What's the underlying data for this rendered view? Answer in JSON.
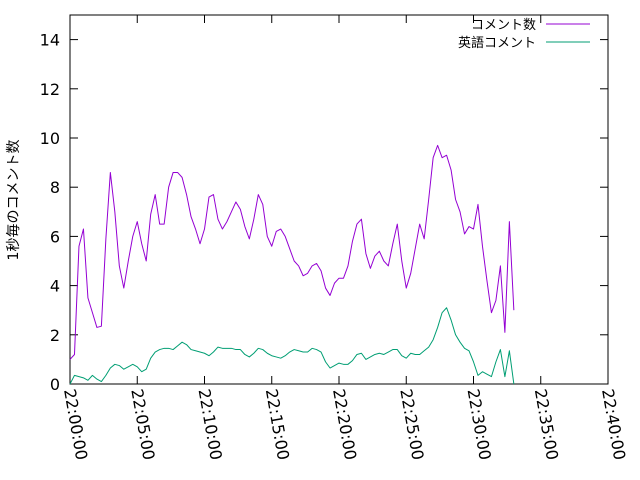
{
  "chart_data": {
    "type": "line",
    "title": "",
    "xlabel": "",
    "ylabel": "1秒毎のコメント数",
    "xlim": [
      "22:00:00",
      "22:40:00"
    ],
    "ylim": [
      0,
      15
    ],
    "x_ticks": [
      "22:00:00",
      "22:05:00",
      "22:10:00",
      "22:15:00",
      "22:20:00",
      "22:25:00",
      "22:30:00",
      "22:35:00",
      "22:40:00"
    ],
    "y_ticks": [
      "0",
      "2",
      "4",
      "6",
      "8",
      "10",
      "12",
      "14"
    ],
    "grid": false,
    "legend_position": "top-right",
    "series": [
      {
        "name": "コメント数",
        "color": "#9400d3",
        "points": [
          [
            "22:00:00",
            1.0
          ],
          [
            "22:00:20",
            1.2
          ],
          [
            "22:00:40",
            5.6
          ],
          [
            "22:01:00",
            6.3
          ],
          [
            "22:01:20",
            3.5
          ],
          [
            "22:01:40",
            2.9
          ],
          [
            "22:02:00",
            2.3
          ],
          [
            "22:02:20",
            2.35
          ],
          [
            "22:02:40",
            5.9
          ],
          [
            "22:03:00",
            8.6
          ],
          [
            "22:03:20",
            7.0
          ],
          [
            "22:03:40",
            4.8
          ],
          [
            "22:04:00",
            3.9
          ],
          [
            "22:04:20",
            5.0
          ],
          [
            "22:04:40",
            6.0
          ],
          [
            "22:05:00",
            6.6
          ],
          [
            "22:05:20",
            5.7
          ],
          [
            "22:05:40",
            5.0
          ],
          [
            "22:06:00",
            6.9
          ],
          [
            "22:06:20",
            7.7
          ],
          [
            "22:06:40",
            6.5
          ],
          [
            "22:07:00",
            6.5
          ],
          [
            "22:07:20",
            8.0
          ],
          [
            "22:07:40",
            8.6
          ],
          [
            "22:08:00",
            8.6
          ],
          [
            "22:08:20",
            8.4
          ],
          [
            "22:08:40",
            7.7
          ],
          [
            "22:09:00",
            6.8
          ],
          [
            "22:09:20",
            6.3
          ],
          [
            "22:09:40",
            5.7
          ],
          [
            "22:10:00",
            6.3
          ],
          [
            "22:10:20",
            7.6
          ],
          [
            "22:10:40",
            7.7
          ],
          [
            "22:11:00",
            6.7
          ],
          [
            "22:11:20",
            6.3
          ],
          [
            "22:11:40",
            6.6
          ],
          [
            "22:12:00",
            7.0
          ],
          [
            "22:12:20",
            7.4
          ],
          [
            "22:12:40",
            7.1
          ],
          [
            "22:13:00",
            6.4
          ],
          [
            "22:13:20",
            5.9
          ],
          [
            "22:13:40",
            6.7
          ],
          [
            "22:14:00",
            7.7
          ],
          [
            "22:14:20",
            7.3
          ],
          [
            "22:14:40",
            6.0
          ],
          [
            "22:15:00",
            5.6
          ],
          [
            "22:15:20",
            6.2
          ],
          [
            "22:15:40",
            6.3
          ],
          [
            "22:16:00",
            6.0
          ],
          [
            "22:16:20",
            5.5
          ],
          [
            "22:16:40",
            5.0
          ],
          [
            "22:17:00",
            4.8
          ],
          [
            "22:17:20",
            4.4
          ],
          [
            "22:17:40",
            4.5
          ],
          [
            "22:18:00",
            4.8
          ],
          [
            "22:18:20",
            4.9
          ],
          [
            "22:18:40",
            4.6
          ],
          [
            "22:19:00",
            3.9
          ],
          [
            "22:19:20",
            3.6
          ],
          [
            "22:19:40",
            4.1
          ],
          [
            "22:20:00",
            4.3
          ],
          [
            "22:20:20",
            4.3
          ],
          [
            "22:20:40",
            4.8
          ],
          [
            "22:21:00",
            5.8
          ],
          [
            "22:21:20",
            6.5
          ],
          [
            "22:21:40",
            6.7
          ],
          [
            "22:22:00",
            5.3
          ],
          [
            "22:22:20",
            4.7
          ],
          [
            "22:22:40",
            5.2
          ],
          [
            "22:23:00",
            5.4
          ],
          [
            "22:23:20",
            5.0
          ],
          [
            "22:23:40",
            4.8
          ],
          [
            "22:24:00",
            5.7
          ],
          [
            "22:24:20",
            6.5
          ],
          [
            "22:24:40",
            5.0
          ],
          [
            "22:25:00",
            3.9
          ],
          [
            "22:25:20",
            4.5
          ],
          [
            "22:25:40",
            5.5
          ],
          [
            "22:26:00",
            6.5
          ],
          [
            "22:26:20",
            5.9
          ],
          [
            "22:26:40",
            7.5
          ],
          [
            "22:27:00",
            9.2
          ],
          [
            "22:27:20",
            9.7
          ],
          [
            "22:27:40",
            9.2
          ],
          [
            "22:28:00",
            9.3
          ],
          [
            "22:28:20",
            8.7
          ],
          [
            "22:28:40",
            7.5
          ],
          [
            "22:29:00",
            7.0
          ],
          [
            "22:29:20",
            6.1
          ],
          [
            "22:29:40",
            6.4
          ],
          [
            "22:30:00",
            6.3
          ],
          [
            "22:30:20",
            7.3
          ],
          [
            "22:30:40",
            5.6
          ],
          [
            "22:31:00",
            4.2
          ],
          [
            "22:31:20",
            2.9
          ],
          [
            "22:31:40",
            3.4
          ],
          [
            "22:32:00",
            4.8
          ],
          [
            "22:32:20",
            2.1
          ],
          [
            "22:32:40",
            6.6
          ],
          [
            "22:33:00",
            3.0
          ]
        ]
      },
      {
        "name": "英語コメント",
        "color": "#009e73",
        "points": [
          [
            "22:00:00",
            0.0
          ],
          [
            "22:00:20",
            0.35
          ],
          [
            "22:00:40",
            0.3
          ],
          [
            "22:01:00",
            0.25
          ],
          [
            "22:01:20",
            0.15
          ],
          [
            "22:01:40",
            0.35
          ],
          [
            "22:02:00",
            0.2
          ],
          [
            "22:02:20",
            0.1
          ],
          [
            "22:02:40",
            0.35
          ],
          [
            "22:03:00",
            0.65
          ],
          [
            "22:03:20",
            0.8
          ],
          [
            "22:03:40",
            0.75
          ],
          [
            "22:04:00",
            0.6
          ],
          [
            "22:04:20",
            0.7
          ],
          [
            "22:04:40",
            0.8
          ],
          [
            "22:05:00",
            0.7
          ],
          [
            "22:05:20",
            0.5
          ],
          [
            "22:05:40",
            0.6
          ],
          [
            "22:06:00",
            1.05
          ],
          [
            "22:06:20",
            1.3
          ],
          [
            "22:06:40",
            1.4
          ],
          [
            "22:07:00",
            1.45
          ],
          [
            "22:07:20",
            1.45
          ],
          [
            "22:07:40",
            1.4
          ],
          [
            "22:08:00",
            1.55
          ],
          [
            "22:08:20",
            1.7
          ],
          [
            "22:08:40",
            1.6
          ],
          [
            "22:09:00",
            1.4
          ],
          [
            "22:09:20",
            1.35
          ],
          [
            "22:09:40",
            1.3
          ],
          [
            "22:10:00",
            1.25
          ],
          [
            "22:10:20",
            1.15
          ],
          [
            "22:10:40",
            1.3
          ],
          [
            "22:11:00",
            1.5
          ],
          [
            "22:11:20",
            1.45
          ],
          [
            "22:11:40",
            1.45
          ],
          [
            "22:12:00",
            1.45
          ],
          [
            "22:12:20",
            1.4
          ],
          [
            "22:12:40",
            1.4
          ],
          [
            "22:13:00",
            1.2
          ],
          [
            "22:13:20",
            1.1
          ],
          [
            "22:13:40",
            1.25
          ],
          [
            "22:14:00",
            1.45
          ],
          [
            "22:14:20",
            1.4
          ],
          [
            "22:14:40",
            1.25
          ],
          [
            "22:15:00",
            1.15
          ],
          [
            "22:15:20",
            1.1
          ],
          [
            "22:15:40",
            1.05
          ],
          [
            "22:16:00",
            1.15
          ],
          [
            "22:16:20",
            1.3
          ],
          [
            "22:16:40",
            1.4
          ],
          [
            "22:17:00",
            1.35
          ],
          [
            "22:17:20",
            1.3
          ],
          [
            "22:17:40",
            1.3
          ],
          [
            "22:18:00",
            1.45
          ],
          [
            "22:18:20",
            1.4
          ],
          [
            "22:18:40",
            1.3
          ],
          [
            "22:19:00",
            0.9
          ],
          [
            "22:19:20",
            0.65
          ],
          [
            "22:19:40",
            0.75
          ],
          [
            "22:20:00",
            0.85
          ],
          [
            "22:20:20",
            0.8
          ],
          [
            "22:20:40",
            0.8
          ],
          [
            "22:21:00",
            0.95
          ],
          [
            "22:21:20",
            1.2
          ],
          [
            "22:21:40",
            1.25
          ],
          [
            "22:22:00",
            1.0
          ],
          [
            "22:22:20",
            1.1
          ],
          [
            "22:22:40",
            1.2
          ],
          [
            "22:23:00",
            1.25
          ],
          [
            "22:23:20",
            1.2
          ],
          [
            "22:23:40",
            1.3
          ],
          [
            "22:24:00",
            1.4
          ],
          [
            "22:24:20",
            1.4
          ],
          [
            "22:24:40",
            1.15
          ],
          [
            "22:25:00",
            1.05
          ],
          [
            "22:25:20",
            1.25
          ],
          [
            "22:25:40",
            1.2
          ],
          [
            "22:26:00",
            1.2
          ],
          [
            "22:26:20",
            1.35
          ],
          [
            "22:26:40",
            1.5
          ],
          [
            "22:27:00",
            1.8
          ],
          [
            "22:27:20",
            2.3
          ],
          [
            "22:27:40",
            2.9
          ],
          [
            "22:28:00",
            3.1
          ],
          [
            "22:28:20",
            2.6
          ],
          [
            "22:28:40",
            2.0
          ],
          [
            "22:29:00",
            1.7
          ],
          [
            "22:29:20",
            1.45
          ],
          [
            "22:29:40",
            1.35
          ],
          [
            "22:30:00",
            0.9
          ],
          [
            "22:30:20",
            0.35
          ],
          [
            "22:30:40",
            0.5
          ],
          [
            "22:31:00",
            0.4
          ],
          [
            "22:31:20",
            0.3
          ],
          [
            "22:31:40",
            0.9
          ],
          [
            "22:32:00",
            1.4
          ],
          [
            "22:32:20",
            0.3
          ],
          [
            "22:32:40",
            1.35
          ],
          [
            "22:33:00",
            0.0
          ]
        ]
      }
    ]
  }
}
